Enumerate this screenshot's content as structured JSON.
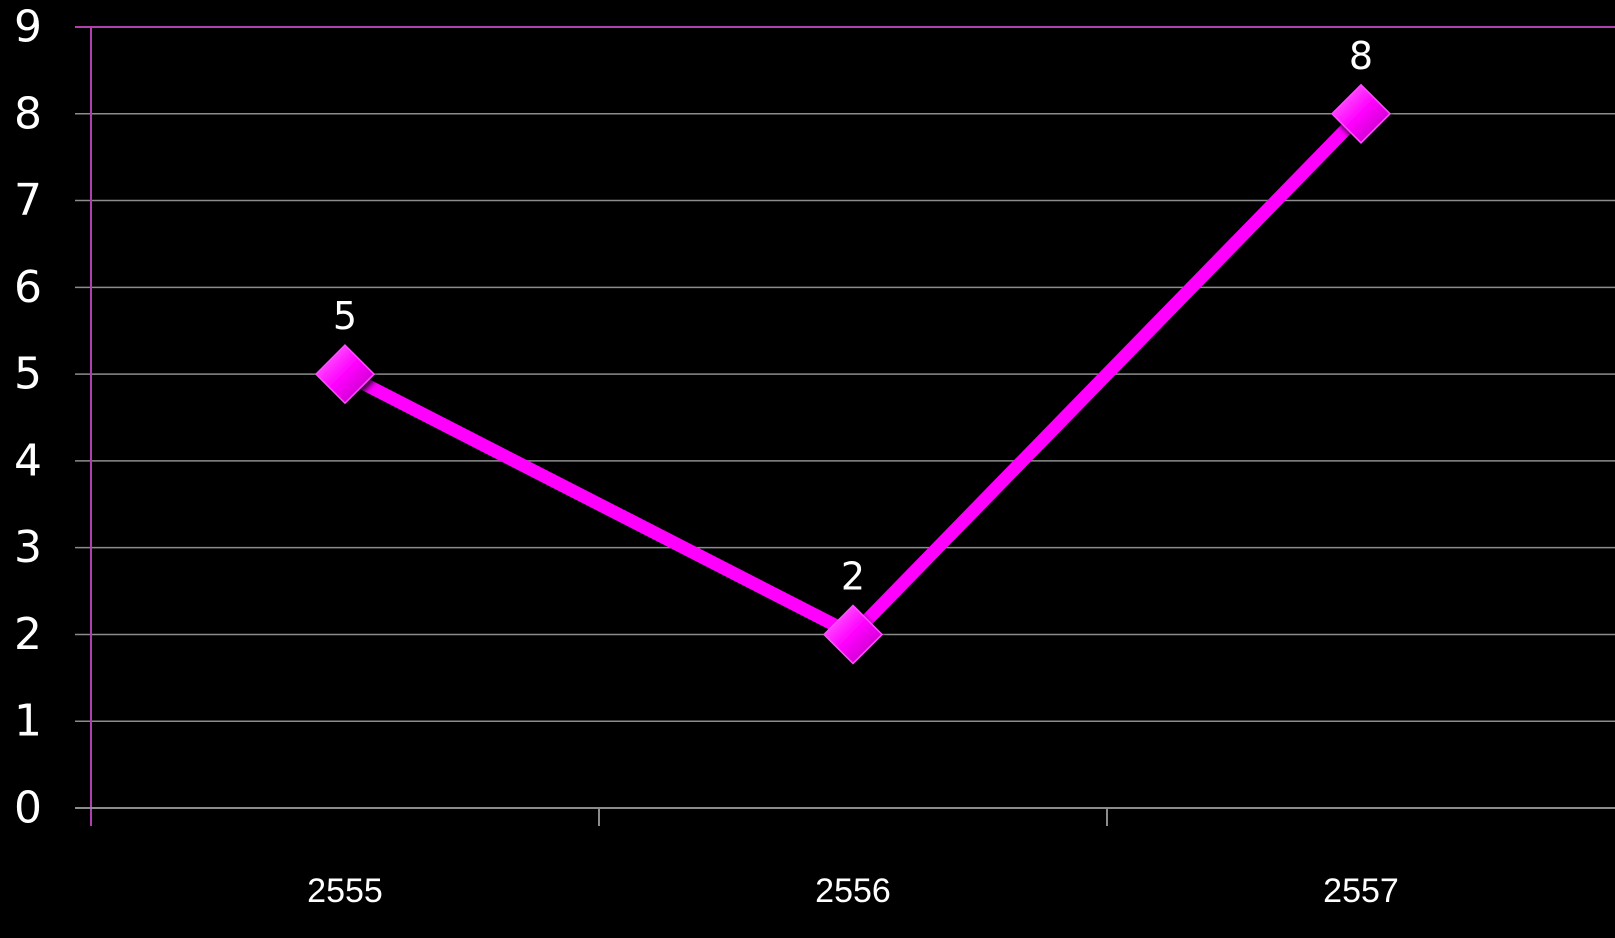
{
  "chart_data": {
    "type": "line",
    "categories": [
      "2555",
      "2556",
      "2557"
    ],
    "series": [
      {
        "values": [
          5,
          2,
          8
        ],
        "color": "#ff00ff"
      }
    ],
    "data_labels": [
      "5",
      "2",
      "8"
    ],
    "yticks": [
      "0",
      "1",
      "2",
      "3",
      "4",
      "5",
      "6",
      "7",
      "8",
      "9"
    ],
    "ylim": [
      0,
      9
    ],
    "grid": true,
    "marker": "diamond",
    "colors": {
      "background": "#000000",
      "grid": "#8c8c8c",
      "axis": "#b040b0",
      "text": "#ffffff"
    }
  }
}
